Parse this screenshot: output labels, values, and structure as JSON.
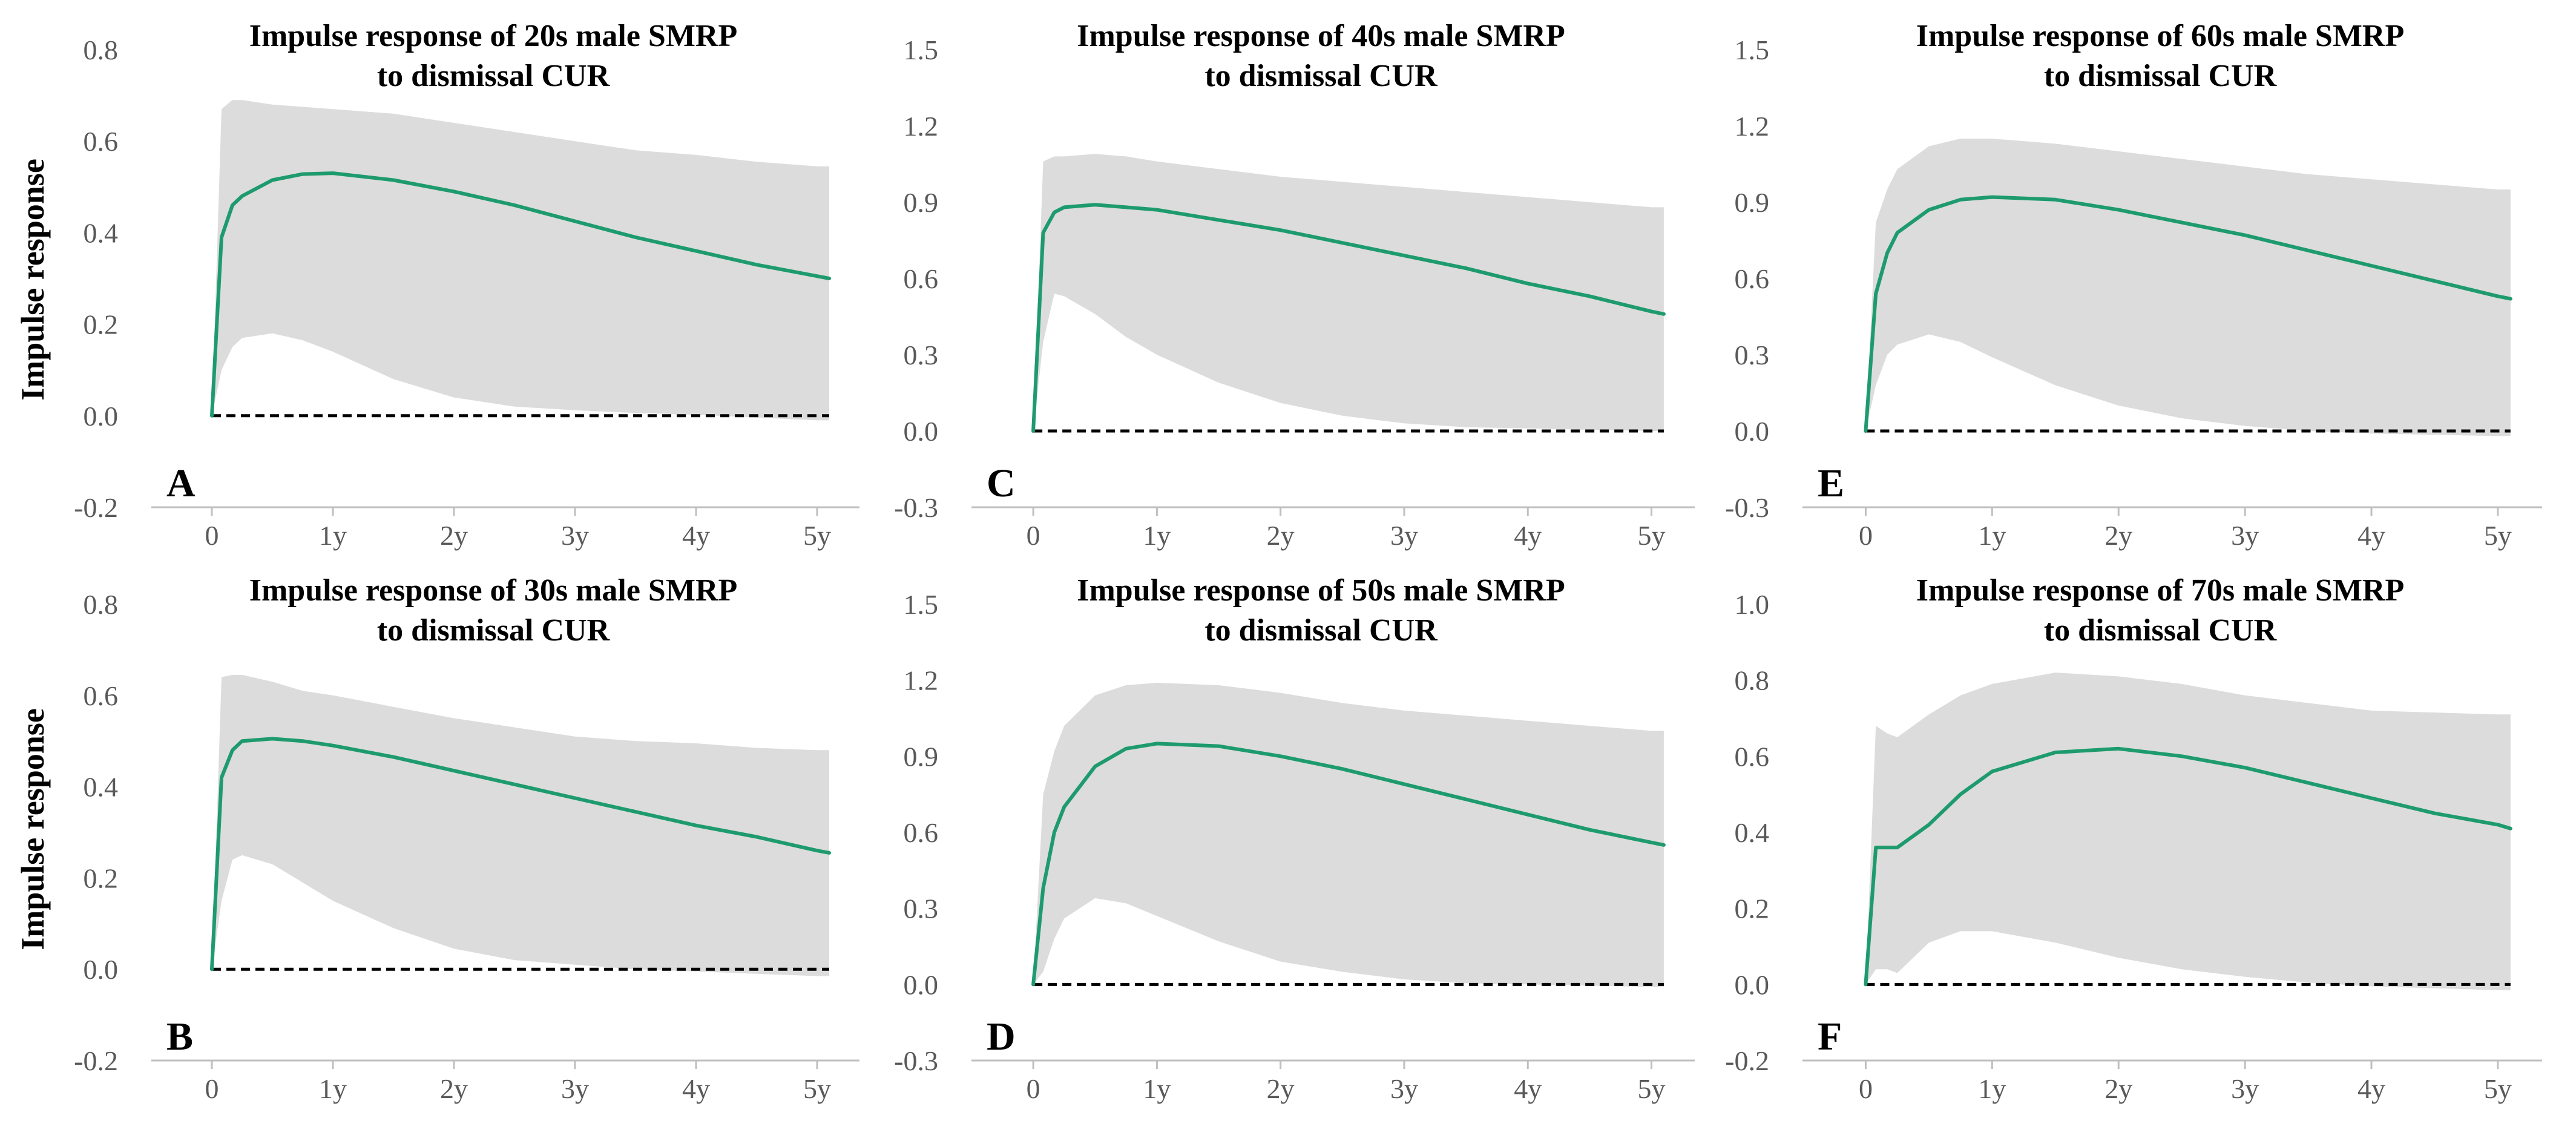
{
  "figure": {
    "y_axis_label": "Impulse response"
  },
  "chart_data": [
    {
      "type": "area",
      "panel_label": "A",
      "title": "Impulse response of 20s male SMRP",
      "subtitle": "to dismissal CUR",
      "ylabel": "Impulse response",
      "ylim": [
        -0.2,
        0.8
      ],
      "yticks": [
        -0.2,
        0.0,
        0.2,
        0.4,
        0.6,
        0.8
      ],
      "ytick_labels": [
        "-0.2",
        "0.0",
        "0.2",
        "0.4",
        "0.6",
        "0.8"
      ],
      "xlim": [
        -0.5,
        5.35
      ],
      "xticks": [
        0,
        1,
        2,
        3,
        4,
        5
      ],
      "xtick_labels": [
        "0",
        "1y",
        "2y",
        "3y",
        "4y",
        "5y"
      ],
      "colors": {
        "line": "#1e9b6e",
        "band": "#dcdcdc",
        "baseline": "#000000"
      },
      "x": [
        0,
        0.08,
        0.17,
        0.25,
        0.5,
        0.75,
        1,
        1.5,
        2,
        2.5,
        3,
        3.5,
        4,
        4.5,
        5,
        5.1
      ],
      "lower": [
        0,
        0.1,
        0.15,
        0.17,
        0.18,
        0.165,
        0.14,
        0.08,
        0.04,
        0.02,
        0.012,
        0.006,
        0.002,
        -0.004,
        -0.01,
        -0.01
      ],
      "upper": [
        0,
        0.67,
        0.69,
        0.69,
        0.68,
        0.675,
        0.67,
        0.66,
        0.64,
        0.62,
        0.6,
        0.58,
        0.57,
        0.555,
        0.545,
        0.545
      ],
      "series": [
        {
          "name": "impulse response",
          "values": [
            0,
            0.39,
            0.46,
            0.48,
            0.515,
            0.528,
            0.53,
            0.515,
            0.49,
            0.46,
            0.425,
            0.39,
            0.36,
            0.33,
            0.305,
            0.3
          ]
        }
      ]
    },
    {
      "type": "area",
      "panel_label": "C",
      "title": "Impulse response of 40s male SMRP",
      "subtitle": "to dismissal CUR",
      "ylabel": "",
      "ylim": [
        -0.3,
        1.5
      ],
      "yticks": [
        -0.3,
        0.0,
        0.3,
        0.6,
        0.9,
        1.2,
        1.5
      ],
      "ytick_labels": [
        "-0.3",
        "0.0",
        "0.3",
        "0.6",
        "0.9",
        "1.2",
        "1.5"
      ],
      "xlim": [
        -0.5,
        5.35
      ],
      "xticks": [
        0,
        1,
        2,
        3,
        4,
        5
      ],
      "xtick_labels": [
        "0",
        "1y",
        "2y",
        "3y",
        "4y",
        "5y"
      ],
      "colors": {
        "line": "#1e9b6e",
        "band": "#dcdcdc",
        "baseline": "#000000"
      },
      "x": [
        0,
        0.08,
        0.17,
        0.25,
        0.5,
        0.75,
        1,
        1.5,
        2,
        2.5,
        3,
        3.5,
        4,
        4.5,
        5,
        5.1
      ],
      "lower": [
        0,
        0.35,
        0.54,
        0.53,
        0.46,
        0.37,
        0.3,
        0.19,
        0.11,
        0.06,
        0.03,
        0.015,
        0.01,
        0.005,
        0.0,
        0.0
      ],
      "upper": [
        0,
        1.06,
        1.08,
        1.08,
        1.09,
        1.08,
        1.06,
        1.03,
        1.0,
        0.98,
        0.96,
        0.94,
        0.92,
        0.9,
        0.88,
        0.88
      ],
      "series": [
        {
          "name": "impulse response",
          "values": [
            0,
            0.78,
            0.86,
            0.88,
            0.89,
            0.88,
            0.87,
            0.83,
            0.79,
            0.74,
            0.69,
            0.64,
            0.58,
            0.53,
            0.47,
            0.46
          ]
        }
      ]
    },
    {
      "type": "area",
      "panel_label": "E",
      "title": "Impulse response of 60s male SMRP",
      "subtitle": "to dismissal CUR",
      "ylabel": "",
      "ylim": [
        -0.3,
        1.5
      ],
      "yticks": [
        -0.3,
        0.0,
        0.3,
        0.6,
        0.9,
        1.2,
        1.5
      ],
      "ytick_labels": [
        "-0.3",
        "0.0",
        "0.3",
        "0.6",
        "0.9",
        "1.2",
        "1.5"
      ],
      "xlim": [
        -0.5,
        5.35
      ],
      "xticks": [
        0,
        1,
        2,
        3,
        4,
        5
      ],
      "xtick_labels": [
        "0",
        "1y",
        "2y",
        "3y",
        "4y",
        "5y"
      ],
      "colors": {
        "line": "#1e9b6e",
        "band": "#dcdcdc",
        "baseline": "#000000"
      },
      "x": [
        0,
        0.08,
        0.17,
        0.25,
        0.5,
        0.75,
        1,
        1.5,
        2,
        2.5,
        3,
        3.5,
        4,
        4.5,
        5,
        5.1
      ],
      "lower": [
        0,
        0.18,
        0.3,
        0.34,
        0.38,
        0.35,
        0.29,
        0.18,
        0.1,
        0.05,
        0.02,
        0.0,
        -0.01,
        -0.015,
        -0.02,
        -0.02
      ],
      "upper": [
        0,
        0.82,
        0.95,
        1.03,
        1.12,
        1.15,
        1.15,
        1.13,
        1.1,
        1.07,
        1.04,
        1.01,
        0.99,
        0.97,
        0.95,
        0.95
      ],
      "series": [
        {
          "name": "impulse response",
          "values": [
            0,
            0.54,
            0.7,
            0.78,
            0.87,
            0.91,
            0.92,
            0.91,
            0.87,
            0.82,
            0.77,
            0.71,
            0.65,
            0.59,
            0.53,
            0.52
          ]
        }
      ]
    },
    {
      "type": "area",
      "panel_label": "B",
      "title": "Impulse response of 30s male SMRP",
      "subtitle": "to dismissal CUR",
      "ylabel": "Impulse response",
      "ylim": [
        -0.2,
        0.8
      ],
      "yticks": [
        -0.2,
        0.0,
        0.2,
        0.4,
        0.6,
        0.8
      ],
      "ytick_labels": [
        "-0.2",
        "0.0",
        "0.2",
        "0.4",
        "0.6",
        "0.8"
      ],
      "xlim": [
        -0.5,
        5.35
      ],
      "xticks": [
        0,
        1,
        2,
        3,
        4,
        5
      ],
      "xtick_labels": [
        "0",
        "1y",
        "2y",
        "3y",
        "4y",
        "5y"
      ],
      "colors": {
        "line": "#1e9b6e",
        "band": "#dcdcdc",
        "baseline": "#000000"
      },
      "x": [
        0,
        0.08,
        0.17,
        0.25,
        0.5,
        0.75,
        1,
        1.5,
        2,
        2.5,
        3,
        3.5,
        4,
        4.5,
        5,
        5.1
      ],
      "lower": [
        0,
        0.15,
        0.24,
        0.25,
        0.23,
        0.19,
        0.15,
        0.09,
        0.045,
        0.02,
        0.01,
        0.0,
        -0.005,
        -0.01,
        -0.015,
        -0.015
      ],
      "upper": [
        0,
        0.64,
        0.645,
        0.645,
        0.63,
        0.61,
        0.6,
        0.575,
        0.55,
        0.53,
        0.51,
        0.5,
        0.495,
        0.485,
        0.48,
        0.48
      ],
      "series": [
        {
          "name": "impulse response",
          "values": [
            0,
            0.42,
            0.48,
            0.5,
            0.505,
            0.5,
            0.49,
            0.465,
            0.435,
            0.405,
            0.375,
            0.345,
            0.315,
            0.29,
            0.26,
            0.255
          ]
        }
      ]
    },
    {
      "type": "area",
      "panel_label": "D",
      "title": "Impulse response of 50s male SMRP",
      "subtitle": "to dismissal CUR",
      "ylabel": "",
      "ylim": [
        -0.3,
        1.5
      ],
      "yticks": [
        -0.3,
        0.0,
        0.3,
        0.6,
        0.9,
        1.2,
        1.5
      ],
      "ytick_labels": [
        "-0.3",
        "0.0",
        "0.3",
        "0.6",
        "0.9",
        "1.2",
        "1.5"
      ],
      "xlim": [
        -0.5,
        5.35
      ],
      "xticks": [
        0,
        1,
        2,
        3,
        4,
        5
      ],
      "xtick_labels": [
        "0",
        "1y",
        "2y",
        "3y",
        "4y",
        "5y"
      ],
      "colors": {
        "line": "#1e9b6e",
        "band": "#dcdcdc",
        "baseline": "#000000"
      },
      "x": [
        0,
        0.08,
        0.17,
        0.25,
        0.5,
        0.75,
        1,
        1.5,
        2,
        2.5,
        3,
        3.5,
        4,
        4.5,
        5,
        5.1
      ],
      "lower": [
        0,
        0.05,
        0.18,
        0.26,
        0.34,
        0.32,
        0.27,
        0.17,
        0.09,
        0.05,
        0.02,
        0.005,
        0.0,
        -0.005,
        -0.01,
        -0.01
      ],
      "upper": [
        0,
        0.75,
        0.92,
        1.02,
        1.14,
        1.18,
        1.19,
        1.18,
        1.15,
        1.11,
        1.08,
        1.06,
        1.04,
        1.02,
        1.0,
        1.0
      ],
      "series": [
        {
          "name": "impulse response",
          "values": [
            0,
            0.38,
            0.6,
            0.7,
            0.86,
            0.93,
            0.95,
            0.94,
            0.9,
            0.85,
            0.79,
            0.73,
            0.67,
            0.61,
            0.56,
            0.55
          ]
        }
      ]
    },
    {
      "type": "area",
      "panel_label": "F",
      "title": "Impulse response of 70s male SMRP",
      "subtitle": "to dismissal CUR",
      "ylabel": "",
      "ylim": [
        -0.2,
        1.0
      ],
      "yticks": [
        -0.2,
        0.0,
        0.2,
        0.4,
        0.6,
        0.8,
        1.0
      ],
      "ytick_labels": [
        "-0.2",
        "0.0",
        "0.2",
        "0.4",
        "0.6",
        "0.8",
        "1.0"
      ],
      "xlim": [
        -0.5,
        5.35
      ],
      "xticks": [
        0,
        1,
        2,
        3,
        4,
        5
      ],
      "xtick_labels": [
        "0",
        "1y",
        "2y",
        "3y",
        "4y",
        "5y"
      ],
      "colors": {
        "line": "#1e9b6e",
        "band": "#dcdcdc",
        "baseline": "#000000"
      },
      "x": [
        0,
        0.08,
        0.17,
        0.25,
        0.5,
        0.75,
        1,
        1.5,
        2,
        2.5,
        3,
        3.5,
        4,
        4.5,
        5,
        5.1
      ],
      "lower": [
        0,
        0.04,
        0.04,
        0.03,
        0.11,
        0.14,
        0.14,
        0.11,
        0.07,
        0.04,
        0.02,
        0.005,
        -0.005,
        -0.01,
        -0.015,
        -0.015
      ],
      "upper": [
        0,
        0.68,
        0.66,
        0.65,
        0.71,
        0.76,
        0.79,
        0.82,
        0.81,
        0.79,
        0.76,
        0.74,
        0.72,
        0.715,
        0.71,
        0.71
      ],
      "series": [
        {
          "name": "impulse response",
          "values": [
            0,
            0.36,
            0.36,
            0.36,
            0.42,
            0.5,
            0.56,
            0.61,
            0.62,
            0.6,
            0.57,
            0.53,
            0.49,
            0.45,
            0.42,
            0.41
          ]
        }
      ]
    }
  ]
}
